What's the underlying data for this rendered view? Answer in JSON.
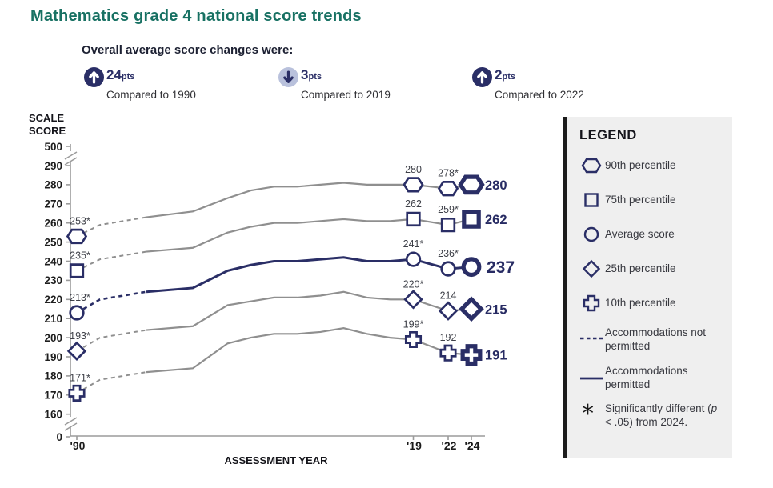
{
  "title": "Mathematics grade 4 national score trends",
  "colors": {
    "teal": "#187163",
    "navy": "#2a2e66",
    "gray_line": "#8f8f8f",
    "label_gray": "#3e4048",
    "light_arrow_bg": "#b9c1dc",
    "legend_bg": "#efefef",
    "axis_gray": "#9b9b9b"
  },
  "summary": {
    "heading": "Overall average score changes were:",
    "items": [
      {
        "direction": "up",
        "points": "24",
        "unit": "pts",
        "caption": "Compared to 1990"
      },
      {
        "direction": "down",
        "points": "3",
        "unit": "pts",
        "caption": "Compared to 2019"
      },
      {
        "direction": "up",
        "points": "2",
        "unit": "pts",
        "caption": "Compared to 2022"
      }
    ]
  },
  "chart_data": {
    "type": "line",
    "title": "Mathematics grade 4 national score trends",
    "xlabel": "ASSESSMENT YEAR",
    "ylabel": "SCALE SCORE",
    "x": [
      1990,
      1992,
      1996,
      2000,
      2003,
      2005,
      2007,
      2009,
      2011,
      2013,
      2015,
      2017,
      2019,
      2022,
      2024
    ],
    "x_ticks": [
      {
        "year": 1990,
        "label": "'90"
      },
      {
        "year": 2019,
        "label": "'19"
      },
      {
        "year": 2022,
        "label": "'22"
      },
      {
        "year": 2024,
        "label": "'24"
      }
    ],
    "y_ticks": [
      290,
      280,
      270,
      260,
      250,
      240,
      230,
      220,
      210,
      200,
      190,
      180,
      170,
      160
    ],
    "y_break_top_label": "500",
    "y_origin_label": "0",
    "axis_breaks": true,
    "ylim_visible": [
      160,
      290
    ],
    "grid": false,
    "dashed_until_year": 1996,
    "marker_years": [
      1990,
      2019,
      2022,
      2024
    ],
    "series": [
      {
        "name": "90th percentile",
        "marker": "hexagon",
        "color": "gray",
        "values": [
          253,
          259,
          263,
          266,
          273,
          277,
          279,
          279,
          280,
          281,
          280,
          280,
          280,
          278,
          280
        ],
        "labels": {
          "1990": "253*",
          "2019": "280",
          "2022": "278*"
        },
        "end_label": "280",
        "headline": false
      },
      {
        "name": "75th percentile",
        "marker": "square",
        "color": "gray",
        "values": [
          235,
          241,
          245,
          247,
          255,
          258,
          260,
          260,
          261,
          262,
          261,
          261,
          262,
          259,
          262
        ],
        "labels": {
          "1990": "235*",
          "2019": "262",
          "2022": "259*"
        },
        "end_label": "262",
        "headline": false
      },
      {
        "name": "Average score",
        "marker": "circle",
        "color": "navy",
        "values": [
          213,
          220,
          224,
          226,
          235,
          238,
          240,
          240,
          241,
          242,
          240,
          240,
          241,
          236,
          237
        ],
        "labels": {
          "1990": "213*",
          "2019": "241*",
          "2022": "236*"
        },
        "end_label": "237",
        "headline": true
      },
      {
        "name": "25th percentile",
        "marker": "diamond",
        "color": "gray",
        "values": [
          193,
          200,
          204,
          206,
          217,
          219,
          221,
          221,
          222,
          224,
          221,
          220,
          220,
          214,
          215
        ],
        "labels": {
          "1990": "193*",
          "2019": "220*",
          "2022": "214"
        },
        "end_label": "215",
        "headline": false
      },
      {
        "name": "10th percentile",
        "marker": "cross",
        "color": "gray",
        "values": [
          171,
          178,
          182,
          184,
          197,
          200,
          202,
          202,
          203,
          205,
          202,
          200,
          199,
          192,
          191
        ],
        "labels": {
          "1990": "171*",
          "2019": "199*",
          "2022": "192"
        },
        "end_label": "191",
        "headline": false
      }
    ]
  },
  "legend": {
    "title": "LEGEND",
    "items": [
      {
        "icon": "hexagon",
        "label": "90th percentile"
      },
      {
        "icon": "square",
        "label": "75th percentile"
      },
      {
        "icon": "circle",
        "label": "Average score"
      },
      {
        "icon": "diamond",
        "label": "25th percentile"
      },
      {
        "icon": "cross",
        "label": "10th percentile"
      },
      {
        "icon": "dashed-line",
        "label": "Accommodations not permitted",
        "multi": true
      },
      {
        "icon": "solid-line",
        "label": "Accommodations permitted",
        "multi": true
      },
      {
        "icon": "asterisk",
        "label": "Significantly different (p < .05) from 2024.",
        "italic_p": true,
        "multi": true
      }
    ]
  }
}
